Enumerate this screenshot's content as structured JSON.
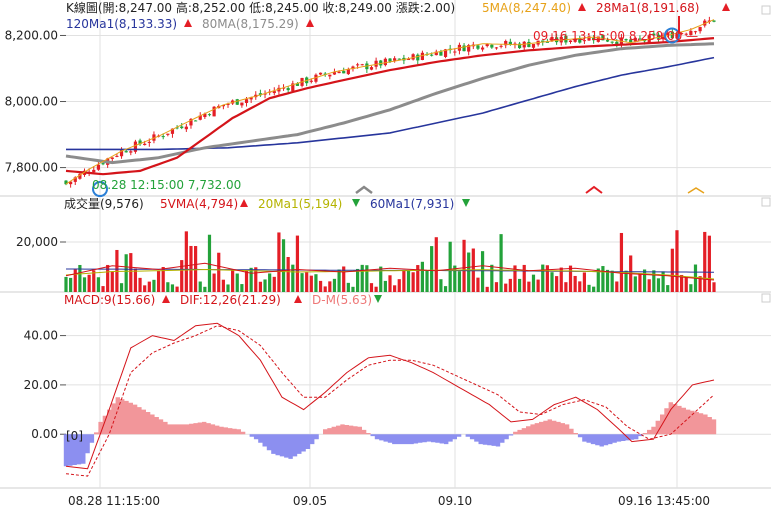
{
  "header": {
    "kline_text": "K線圖(開:8,247.00 高:8,252.00 低:8,245.00 收:8,249.00 漲跌:2.00)",
    "ma5_text": "5MA(8,247.40)",
    "ma28_text": "28Ma1(8,191.68)",
    "ma120_text": "120Ma1(8,133.33)",
    "ma80_text": "80MA(8,175.29)"
  },
  "annotations": {
    "high_text": "09.16 13:15:00  8,259.00 —",
    "low_text": "08.28 12:15:00  7,732.00",
    "hist_zero_label": "[0]"
  },
  "volume_header": {
    "title": "成交量(9,576)",
    "vma5": "5VMA(4,794)",
    "ma20": "20Ma1(5,194)",
    "ma60": "60Ma1(7,931)"
  },
  "macd_header": {
    "macd": "MACD:9(15.66)",
    "dif": "DIF:12,26(21.29)",
    "dm": "D-M(5.63)"
  },
  "colors": {
    "up": "#e41e26",
    "down": "#23a23a",
    "ma5": "#e7a21a",
    "ma28": "#d4141a",
    "ma80": "#8c8c8c",
    "ma120": "#27359c",
    "vma20": "#b5b300",
    "vma60": "#27359c",
    "hist_pos": "#f2969a",
    "hist_neg": "#8c8ff0",
    "marker": "#2b7fd6"
  },
  "chart_data": [
    {
      "type": "candlestick",
      "title": "K線圖",
      "y_ticks": [
        "8,200.00",
        "8,000.00",
        "7,800.00"
      ],
      "ylim": [
        7720,
        8265
      ],
      "x_ticks": [
        "08.28 11:15:00",
        "09.05",
        "09.10",
        "09.16 13:45:00"
      ],
      "high": 8259,
      "low": 7732,
      "ma_anchors": {
        "ma5": [
          [
            0,
            7750
          ],
          [
            5,
            7795
          ],
          [
            12,
            7850
          ],
          [
            20,
            7895
          ],
          [
            28,
            7950
          ],
          [
            34,
            7990
          ],
          [
            42,
            8020
          ],
          [
            50,
            8055
          ],
          [
            58,
            8090
          ],
          [
            66,
            8110
          ],
          [
            74,
            8130
          ],
          [
            82,
            8155
          ],
          [
            90,
            8175
          ],
          [
            98,
            8172
          ],
          [
            106,
            8185
          ],
          [
            114,
            8195
          ],
          [
            122,
            8178
          ],
          [
            130,
            8200
          ],
          [
            135,
            8218
          ],
          [
            140,
            8248
          ]
        ],
        "ma28": [
          [
            0,
            7790
          ],
          [
            8,
            7780
          ],
          [
            16,
            7790
          ],
          [
            24,
            7830
          ],
          [
            30,
            7890
          ],
          [
            36,
            7950
          ],
          [
            44,
            8010
          ],
          [
            52,
            8040
          ],
          [
            60,
            8065
          ],
          [
            70,
            8095
          ],
          [
            80,
            8120
          ],
          [
            90,
            8140
          ],
          [
            100,
            8155
          ],
          [
            110,
            8165
          ],
          [
            120,
            8172
          ],
          [
            130,
            8180
          ],
          [
            140,
            8192
          ]
        ],
        "ma80": [
          [
            0,
            7835
          ],
          [
            10,
            7815
          ],
          [
            20,
            7830
          ],
          [
            30,
            7860
          ],
          [
            40,
            7880
          ],
          [
            50,
            7900
          ],
          [
            60,
            7935
          ],
          [
            70,
            7975
          ],
          [
            80,
            8025
          ],
          [
            90,
            8070
          ],
          [
            100,
            8110
          ],
          [
            110,
            8140
          ],
          [
            120,
            8160
          ],
          [
            130,
            8170
          ],
          [
            140,
            8175
          ]
        ],
        "ma120": [
          [
            0,
            7855
          ],
          [
            20,
            7855
          ],
          [
            35,
            7860
          ],
          [
            50,
            7875
          ],
          [
            60,
            7890
          ],
          [
            70,
            7905
          ],
          [
            80,
            7935
          ],
          [
            90,
            7965
          ],
          [
            100,
            8005
          ],
          [
            110,
            8045
          ],
          [
            120,
            8080
          ],
          [
            130,
            8105
          ],
          [
            140,
            8133
          ]
        ]
      }
    },
    {
      "type": "bar",
      "title": "成交量",
      "y_ticks": [
        "20,000"
      ],
      "ylim": [
        0,
        32000
      ],
      "vma_anchors": {
        "vma5": [
          [
            0,
            6500
          ],
          [
            10,
            10500
          ],
          [
            20,
            9000
          ],
          [
            30,
            11500
          ],
          [
            40,
            7500
          ],
          [
            50,
            9000
          ],
          [
            60,
            8000
          ],
          [
            70,
            9500
          ],
          [
            80,
            8500
          ],
          [
            90,
            10500
          ],
          [
            100,
            8500
          ],
          [
            110,
            9500
          ],
          [
            120,
            7500
          ],
          [
            130,
            6500
          ],
          [
            140,
            4794
          ]
        ],
        "vma20": [
          [
            0,
            6800
          ],
          [
            10,
            8200
          ],
          [
            20,
            8500
          ],
          [
            30,
            9000
          ],
          [
            40,
            8500
          ],
          [
            50,
            8000
          ],
          [
            60,
            8200
          ],
          [
            70,
            8500
          ],
          [
            80,
            8700
          ],
          [
            90,
            8900
          ],
          [
            100,
            8600
          ],
          [
            110,
            8400
          ],
          [
            120,
            7800
          ],
          [
            130,
            6800
          ],
          [
            140,
            5194
          ]
        ],
        "vma60": [
          [
            0,
            9200
          ],
          [
            20,
            9100
          ],
          [
            40,
            8900
          ],
          [
            60,
            8700
          ],
          [
            80,
            8600
          ],
          [
            100,
            8400
          ],
          [
            120,
            8100
          ],
          [
            140,
            7931
          ]
        ]
      }
    },
    {
      "type": "line",
      "title": "MACD",
      "y_ticks": [
        "40.00",
        "20.00",
        "0.00"
      ],
      "ylim": [
        -21,
        52
      ],
      "dif": [
        [
          0,
          -13
        ],
        [
          5,
          -14
        ],
        [
          10,
          10
        ],
        [
          15,
          35
        ],
        [
          20,
          40
        ],
        [
          25,
          38
        ],
        [
          30,
          44
        ],
        [
          35,
          45
        ],
        [
          40,
          40
        ],
        [
          45,
          30
        ],
        [
          50,
          15
        ],
        [
          55,
          10
        ],
        [
          60,
          17
        ],
        [
          65,
          25
        ],
        [
          70,
          31
        ],
        [
          75,
          32
        ],
        [
          80,
          29
        ],
        [
          85,
          25
        ],
        [
          90,
          20
        ],
        [
          95,
          15
        ],
        [
          98,
          12
        ],
        [
          103,
          5
        ],
        [
          108,
          6
        ],
        [
          113,
          12
        ],
        [
          118,
          15
        ],
        [
          123,
          10
        ],
        [
          128,
          2
        ],
        [
          131,
          -3
        ],
        [
          136,
          -2
        ],
        [
          140,
          10
        ],
        [
          145,
          20
        ],
        [
          150,
          22
        ]
      ],
      "dm": [
        [
          0,
          -16
        ],
        [
          5,
          -17
        ],
        [
          10,
          0
        ],
        [
          15,
          25
        ],
        [
          20,
          33
        ],
        [
          25,
          37
        ],
        [
          30,
          40
        ],
        [
          35,
          44
        ],
        [
          40,
          42
        ],
        [
          45,
          36
        ],
        [
          50,
          25
        ],
        [
          55,
          15
        ],
        [
          60,
          15
        ],
        [
          65,
          22
        ],
        [
          70,
          28
        ],
        [
          75,
          30
        ],
        [
          80,
          30
        ],
        [
          85,
          28
        ],
        [
          90,
          24
        ],
        [
          95,
          20
        ],
        [
          100,
          16
        ],
        [
          105,
          9
        ],
        [
          110,
          8
        ],
        [
          115,
          12
        ],
        [
          120,
          14
        ],
        [
          125,
          11
        ],
        [
          130,
          3
        ],
        [
          135,
          -2
        ],
        [
          140,
          0
        ],
        [
          145,
          8
        ],
        [
          150,
          16
        ]
      ],
      "hist": [
        [
          0,
          -13
        ],
        [
          4,
          -12
        ],
        [
          8,
          5
        ],
        [
          12,
          15
        ],
        [
          16,
          12
        ],
        [
          20,
          8
        ],
        [
          24,
          4
        ],
        [
          28,
          4
        ],
        [
          32,
          5
        ],
        [
          36,
          3
        ],
        [
          40,
          2
        ],
        [
          44,
          -2
        ],
        [
          48,
          -8
        ],
        [
          52,
          -10
        ],
        [
          56,
          -6
        ],
        [
          60,
          2
        ],
        [
          64,
          4
        ],
        [
          68,
          3
        ],
        [
          72,
          -2
        ],
        [
          76,
          -4
        ],
        [
          80,
          -4
        ],
        [
          84,
          -3
        ],
        [
          88,
          -4
        ],
        [
          92,
          0
        ],
        [
          96,
          -4
        ],
        [
          100,
          -5
        ],
        [
          104,
          1
        ],
        [
          108,
          4
        ],
        [
          112,
          6
        ],
        [
          116,
          4
        ],
        [
          120,
          -3
        ],
        [
          124,
          -5
        ],
        [
          128,
          -3
        ],
        [
          132,
          -2
        ],
        [
          136,
          3
        ],
        [
          140,
          13
        ],
        [
          144,
          10
        ],
        [
          148,
          8
        ],
        [
          150,
          6
        ]
      ]
    }
  ]
}
